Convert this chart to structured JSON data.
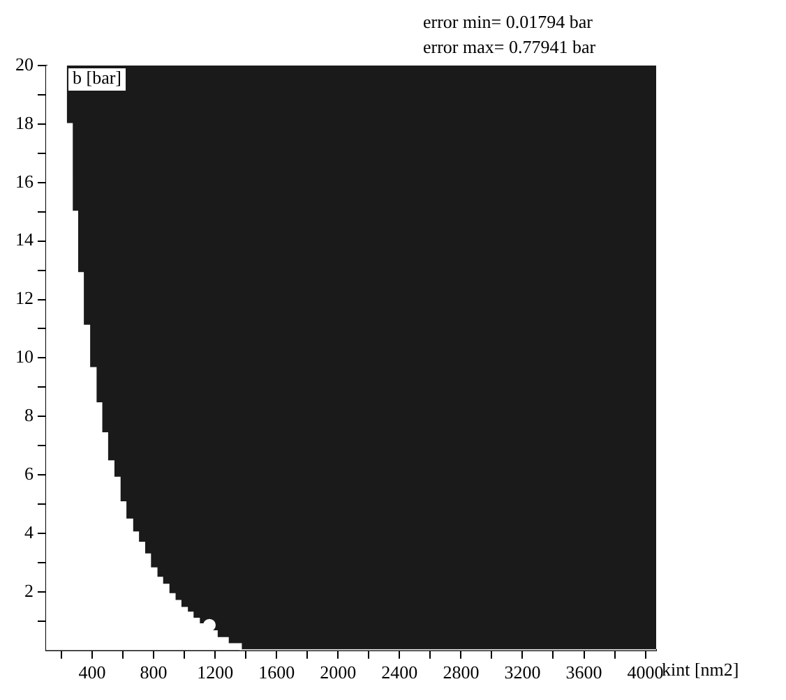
{
  "chart_data": {
    "type": "step",
    "xlabel": "kint [nm2]",
    "ylabel": "b [bar]",
    "annotations": [
      "error min= 0.01794 bar",
      "error max= 0.77941 bar"
    ],
    "xlim": [
      100,
      4070
    ],
    "ylim": [
      0,
      20
    ],
    "xticks": [
      {
        "value": 200,
        "label": null
      },
      400,
      {
        "value": 600,
        "label": null
      },
      800,
      {
        "value": 1000,
        "label": null
      },
      1200,
      {
        "value": 1400,
        "label": null
      },
      1600,
      {
        "value": 1800,
        "label": null
      },
      2000,
      {
        "value": 2200,
        "label": null
      },
      2400,
      {
        "value": 2600,
        "label": null
      },
      2800,
      {
        "value": 3000,
        "label": null
      },
      3200,
      {
        "value": 3400,
        "label": null
      },
      3600,
      {
        "value": 3800,
        "label": null
      },
      4000
    ],
    "yticks": [
      {
        "value": 1,
        "label": null
      },
      2,
      {
        "value": 3,
        "label": null
      },
      4,
      {
        "value": 5,
        "label": null
      },
      6,
      {
        "value": 7,
        "label": null
      },
      8,
      {
        "value": 9,
        "label": null
      },
      10,
      {
        "value": 11,
        "label": null
      },
      12,
      {
        "value": 13,
        "label": null
      },
      14,
      {
        "value": 15,
        "label": null
      },
      16,
      {
        "value": 17,
        "label": null
      },
      18,
      {
        "value": 19,
        "label": null
      },
      20
    ],
    "grid": false,
    "legend": false,
    "marker": "none",
    "series": [
      {
        "type": "area",
        "color": "#ffffff",
        "x": [
          100,
          229,
          267,
          302,
          339,
          380,
          422,
          459,
          497,
          538,
          578,
          616,
          660,
          698,
          738,
          776,
          818,
          855,
          896,
          936,
          974,
          1016,
          1053,
          1094,
          1132,
          1172,
          1210,
          1282,
          1367,
          4070
        ],
        "values": [
          20,
          18.0,
          15.0,
          12.9,
          11.1,
          9.65,
          8.45,
          7.42,
          6.46,
          5.9,
          5.06,
          4.47,
          4.03,
          3.68,
          3.28,
          2.8,
          2.48,
          2.24,
          1.92,
          1.69,
          1.45,
          1.29,
          1.08,
          0.89,
          0.75,
          0.65,
          0.42,
          0.21,
          0,
          0
        ]
      },
      {
        "type": "scatter",
        "color": "#ffffff",
        "marker": "circle",
        "x": [
          1163
        ],
        "values": [
          0.86
        ]
      }
    ]
  }
}
